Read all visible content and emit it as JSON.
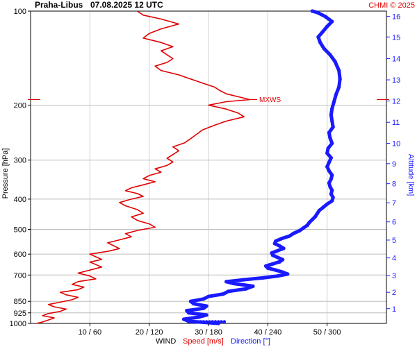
{
  "header": {
    "station": "Praha-Libus",
    "datetime": "07.08.2025 12 UTC",
    "credit": "CHMI © 2025"
  },
  "chart_data": {
    "type": "line",
    "xlabel": {
      "prefix": "WIND",
      "speed": "Speed [m/s]",
      "direction": "Direction [°]"
    },
    "ylabel": "Pressure [hPa]",
    "y2label": "Altitude [km]",
    "y_scale": "log",
    "y_inverted": true,
    "ylim": [
      1000,
      100
    ],
    "y_ticks": [
      100,
      200,
      300,
      400,
      500,
      600,
      700,
      850,
      925,
      1000
    ],
    "grid_pressure_levels": [
      200,
      300,
      400,
      500,
      600,
      700,
      850,
      925,
      1000
    ],
    "speed_axis": {
      "range": [
        0,
        60
      ],
      "ticks": [
        10,
        20,
        30,
        40,
        50
      ]
    },
    "direction_axis": {
      "range": [
        0,
        360
      ],
      "ticks": [
        60,
        120,
        180,
        240,
        300
      ]
    },
    "x_tick_labels": [
      "10 / 60",
      "20 / 120",
      "30 / 180",
      "40 / 240",
      "50 / 300"
    ],
    "altitude_ticks_km": [
      {
        "km": 1,
        "p": 897
      },
      {
        "km": 2,
        "p": 795
      },
      {
        "km": 3,
        "p": 702
      },
      {
        "km": 4,
        "p": 617
      },
      {
        "km": 5,
        "p": 541
      },
      {
        "km": 6,
        "p": 473
      },
      {
        "km": 7,
        "p": 411
      },
      {
        "km": 8,
        "p": 357
      },
      {
        "km": 9,
        "p": 308
      },
      {
        "km": 10,
        "p": 265
      },
      {
        "km": 11,
        "p": 227
      },
      {
        "km": 12,
        "p": 194
      },
      {
        "km": 13,
        "p": 166
      },
      {
        "km": 14,
        "p": 142
      },
      {
        "km": 15,
        "p": 121
      },
      {
        "km": 16,
        "p": 104
      }
    ],
    "mxws": {
      "label": "MXWS",
      "pressure": 192,
      "speed": 37
    },
    "series": [
      {
        "name": "Speed [m/s]",
        "color": "#e00000",
        "points": [
          [
            1000,
            1
          ],
          [
            990,
            2
          ],
          [
            975,
            3
          ],
          [
            960,
            4
          ],
          [
            945,
            2
          ],
          [
            930,
            3
          ],
          [
            915,
            5
          ],
          [
            900,
            6
          ],
          [
            885,
            4
          ],
          [
            870,
            3
          ],
          [
            855,
            5
          ],
          [
            840,
            7
          ],
          [
            825,
            8
          ],
          [
            810,
            6
          ],
          [
            795,
            5
          ],
          [
            780,
            8
          ],
          [
            765,
            9
          ],
          [
            750,
            7
          ],
          [
            735,
            8
          ],
          [
            720,
            11
          ],
          [
            705,
            10
          ],
          [
            690,
            8
          ],
          [
            675,
            10
          ],
          [
            660,
            12
          ],
          [
            648,
            11
          ],
          [
            636,
            10
          ],
          [
            624,
            12
          ],
          [
            612,
            11
          ],
          [
            600,
            10
          ],
          [
            588,
            13
          ],
          [
            576,
            15
          ],
          [
            564,
            14
          ],
          [
            552,
            13
          ],
          [
            540,
            15
          ],
          [
            528,
            17
          ],
          [
            516,
            16
          ],
          [
            504,
            18
          ],
          [
            492,
            21
          ],
          [
            480,
            20
          ],
          [
            468,
            18
          ],
          [
            456,
            17
          ],
          [
            444,
            19
          ],
          [
            432,
            18
          ],
          [
            420,
            16
          ],
          [
            410,
            15
          ],
          [
            400,
            17
          ],
          [
            392,
            19
          ],
          [
            384,
            18
          ],
          [
            376,
            16
          ],
          [
            368,
            17
          ],
          [
            360,
            19
          ],
          [
            352,
            21
          ],
          [
            344,
            19
          ],
          [
            336,
            20
          ],
          [
            328,
            22
          ],
          [
            320,
            21
          ],
          [
            312,
            23
          ],
          [
            304,
            24
          ],
          [
            296,
            23
          ],
          [
            288,
            24
          ],
          [
            280,
            25
          ],
          [
            272,
            24
          ],
          [
            264,
            26
          ],
          [
            256,
            27
          ],
          [
            248,
            28
          ],
          [
            240,
            29
          ],
          [
            232,
            31
          ],
          [
            225,
            33
          ],
          [
            218,
            36
          ],
          [
            212,
            35
          ],
          [
            206,
            33
          ],
          [
            200,
            30
          ],
          [
            195,
            33
          ],
          [
            192,
            37
          ],
          [
            188,
            35
          ],
          [
            184,
            33
          ],
          [
            180,
            32
          ],
          [
            175,
            31
          ],
          [
            170,
            29
          ],
          [
            165,
            27
          ],
          [
            160,
            25
          ],
          [
            155,
            22
          ],
          [
            150,
            21
          ],
          [
            146,
            23
          ],
          [
            142,
            24
          ],
          [
            138,
            23
          ],
          [
            134,
            22
          ],
          [
            130,
            24
          ],
          [
            126,
            22
          ],
          [
            122,
            19
          ],
          [
            118,
            20
          ],
          [
            114,
            22
          ],
          [
            110,
            25
          ],
          [
            106,
            22
          ],
          [
            103,
            19
          ],
          [
            100,
            18
          ]
        ]
      },
      {
        "name": "Direction [°]",
        "color": "#1a1aff",
        "points": [
          [
            1000,
            190
          ],
          [
            985,
            160
          ],
          [
            970,
            155
          ],
          [
            955,
            170
          ],
          [
            940,
            178
          ],
          [
            925,
            160
          ],
          [
            910,
            158
          ],
          [
            895,
            175
          ],
          [
            880,
            178
          ],
          [
            865,
            165
          ],
          [
            850,
            162
          ],
          [
            835,
            175
          ],
          [
            820,
            180
          ],
          [
            805,
            195
          ],
          [
            790,
            200
          ],
          [
            775,
            218
          ],
          [
            760,
            225
          ],
          [
            745,
            205
          ],
          [
            735,
            198
          ],
          [
            725,
            215
          ],
          [
            715,
            235
          ],
          [
            705,
            250
          ],
          [
            695,
            260
          ],
          [
            685,
            255
          ],
          [
            675,
            248
          ],
          [
            665,
            240
          ],
          [
            655,
            238
          ],
          [
            645,
            245
          ],
          [
            635,
            252
          ],
          [
            625,
            255
          ],
          [
            615,
            250
          ],
          [
            605,
            245
          ],
          [
            595,
            244
          ],
          [
            585,
            250
          ],
          [
            575,
            256
          ],
          [
            565,
            252
          ],
          [
            555,
            247
          ],
          [
            545,
            248
          ],
          [
            535,
            254
          ],
          [
            525,
            262
          ],
          [
            515,
            266
          ],
          [
            505,
            272
          ],
          [
            495,
            276
          ],
          [
            485,
            280
          ],
          [
            475,
            282
          ],
          [
            465,
            285
          ],
          [
            455,
            288
          ],
          [
            445,
            290
          ],
          [
            435,
            292
          ],
          [
            425,
            296
          ],
          [
            415,
            300
          ],
          [
            405,
            305
          ],
          [
            395,
            306
          ],
          [
            385,
            304
          ],
          [
            375,
            305
          ],
          [
            365,
            303
          ],
          [
            355,
            302
          ],
          [
            345,
            304
          ],
          [
            335,
            305
          ],
          [
            325,
            302
          ],
          [
            315,
            300
          ],
          [
            305,
            302
          ],
          [
            295,
            304
          ],
          [
            285,
            300
          ],
          [
            275,
            301
          ],
          [
            265,
            305
          ],
          [
            255,
            303
          ],
          [
            245,
            302
          ],
          [
            235,
            306
          ],
          [
            225,
            305
          ],
          [
            215,
            304
          ],
          [
            205,
            305
          ],
          [
            195,
            307
          ],
          [
            185,
            309
          ],
          [
            175,
            312
          ],
          [
            165,
            313
          ],
          [
            155,
            312
          ],
          [
            145,
            308
          ],
          [
            138,
            303
          ],
          [
            132,
            297
          ],
          [
            126,
            293
          ],
          [
            121,
            291
          ],
          [
            116,
            296
          ],
          [
            112,
            300
          ],
          [
            108,
            305
          ],
          [
            104,
            298
          ],
          [
            101,
            290
          ],
          [
            100,
            285
          ]
        ]
      }
    ]
  }
}
